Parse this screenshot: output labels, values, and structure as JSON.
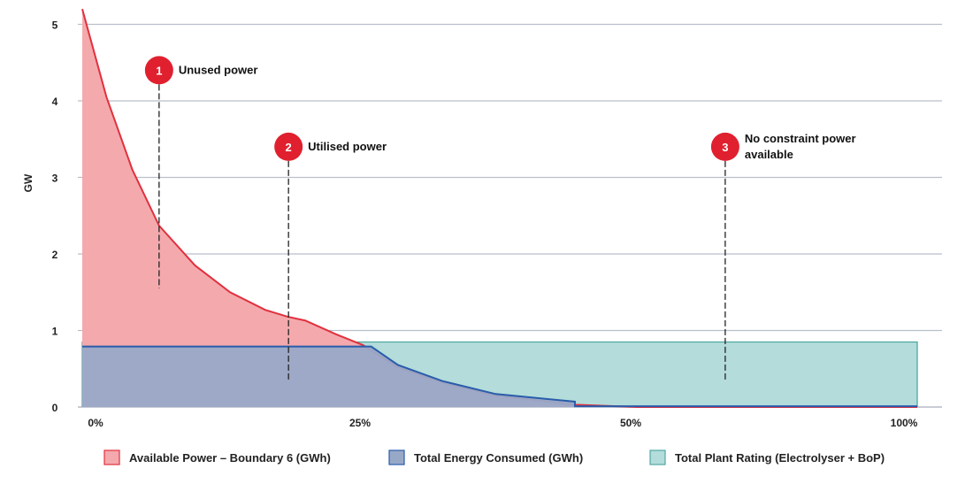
{
  "chart_data": {
    "type": "area",
    "title": "",
    "xlabel": "",
    "ylabel": "GW",
    "ylim": [
      0,
      5
    ],
    "xlim": [
      0,
      100
    ],
    "y_ticks": [
      "0",
      "1",
      "2",
      "3",
      "4",
      "5"
    ],
    "x_tick_labels": [
      "0%",
      "25%",
      "50%",
      "100%"
    ],
    "grid": true,
    "legend_position": "bottom",
    "series": [
      {
        "name": "Total Plant Rating (Electrolyser + BoP)",
        "color": "#b3dcda",
        "stroke": "#4fa8a3",
        "x": [
          0,
          100
        ],
        "y": [
          0.85,
          0.85
        ]
      },
      {
        "name": "Available Power – Boundary 6 (GWh)",
        "color": "#f4a9ad",
        "stroke": "#e0313e",
        "x": [
          0,
          2.9,
          6.0,
          9.2,
          13.5,
          17.7,
          21.9,
          24.6,
          26.7,
          30.4,
          33.6,
          37.8,
          43.1,
          49.5,
          59,
          66.4,
          100
        ],
        "y": [
          5.2,
          4.05,
          3.1,
          2.37,
          1.85,
          1.5,
          1.27,
          1.18,
          1.13,
          0.95,
          0.81,
          0.52,
          0.32,
          0.15,
          0.03,
          0.0,
          0.0
        ]
      },
      {
        "name": "Total Energy Consumed (GWh)",
        "color": "#98a9c8",
        "stroke": "#2a5caa",
        "x": [
          0,
          34.6,
          37.8,
          43.1,
          49.5,
          59,
          59,
          100
        ],
        "y": [
          0.79,
          0.79,
          0.55,
          0.34,
          0.17,
          0.07,
          0.01,
          0.01
        ]
      }
    ],
    "annotations": [
      {
        "number": "1",
        "text": [
          "Unused power"
        ],
        "x": 9.2,
        "y": 4.4,
        "line_to": 1.55
      },
      {
        "number": "2",
        "text": [
          "Utilised power"
        ],
        "x": 24.7,
        "y": 3.4,
        "line_to": 0.33
      },
      {
        "number": "3",
        "text": [
          "No constraint power",
          "available"
        ],
        "x": 77,
        "y": 3.4,
        "line_to": 0.33
      }
    ],
    "annotation_color": "#e0202e"
  }
}
